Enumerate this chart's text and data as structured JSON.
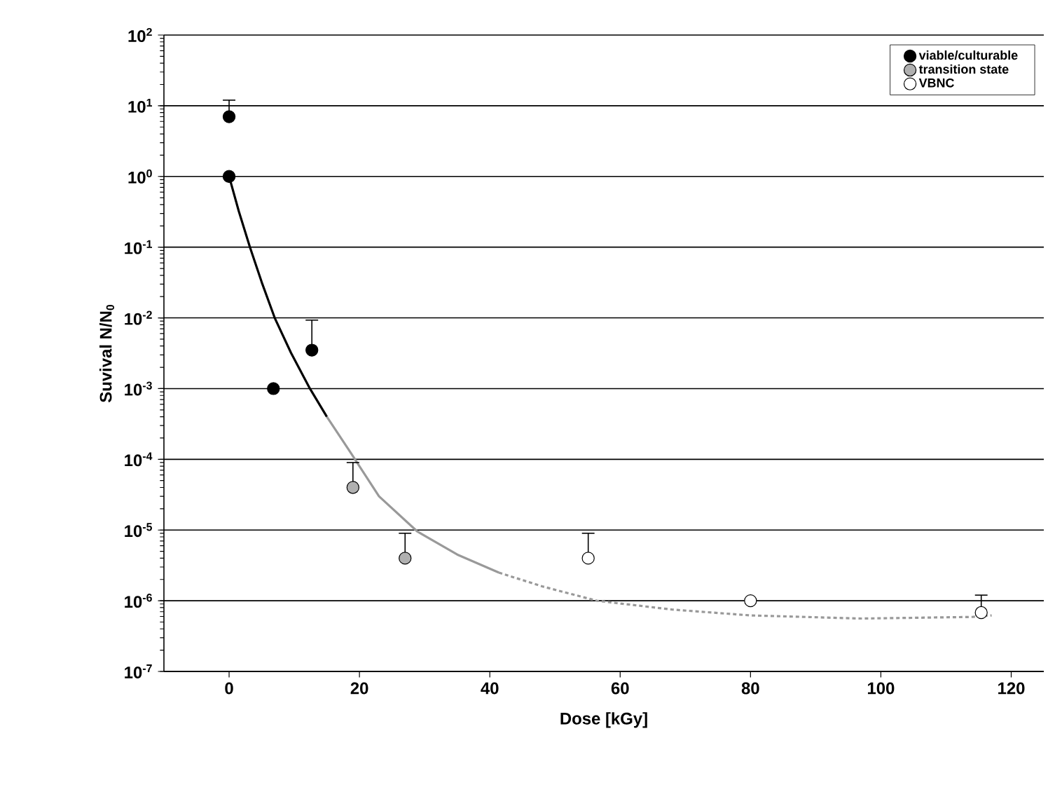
{
  "chart_data": {
    "type": "scatter",
    "xlabel": "Dose [kGy]",
    "ylabel": "Suvival N/N$_{0}$",
    "log": "y",
    "grid": "y",
    "legend": "top right",
    "xlim": [
      -10,
      125
    ],
    "xticks": [
      0,
      20,
      40,
      60,
      80,
      100,
      120
    ],
    "ylim": [
      1e-07,
      100
    ],
    "yticks": [
      {
        "value": 1e-07,
        "label": "10$^{-7}$"
      },
      {
        "value": 1e-06,
        "label": "10$^{-6}$"
      },
      {
        "value": 1e-05,
        "label": "10$^{-5}$"
      },
      {
        "value": 0.0001,
        "label": "10$^{-4}$"
      },
      {
        "value": 0.001,
        "label": "10$^{-3}$"
      },
      {
        "value": 0.01,
        "label": "10$^{-2}$"
      },
      {
        "value": 0.1,
        "label": "10$^{-1}$"
      },
      {
        "value": 1,
        "label": "10$^{0}$"
      },
      {
        "value": 10,
        "label": "10$^{1}$"
      },
      {
        "value": 100,
        "label": "10$^{2}$"
      }
    ],
    "series": [
      {
        "type": "line",
        "color": "#000000",
        "line_style": "solid",
        "marker": "none",
        "x": [
          0,
          1.5,
          3.2,
          5,
          7,
          9.5,
          12.4,
          15
        ],
        "values": [
          1,
          0.32,
          0.1,
          0.032,
          0.01,
          0.0032,
          0.001,
          0.0004
        ]
      },
      {
        "type": "line",
        "color": "#999999",
        "line_style": "solid",
        "marker": "none",
        "x": [
          15,
          18.6,
          23,
          28.9,
          35,
          41.4
        ],
        "values": [
          0.0004,
          0.000126,
          3e-05,
          9.5e-06,
          4.5e-06,
          2.5e-06
        ]
      },
      {
        "type": "line",
        "color": "#999999",
        "line_style": "dotted",
        "marker": "none",
        "x": [
          41.4,
          48,
          56.4,
          68,
          80,
          97,
          114,
          117
        ],
        "values": [
          2.5e-06,
          1.6e-06,
          1e-06,
          7.5e-07,
          6.2e-07,
          5.6e-07,
          5.9e-07,
          6.2e-07
        ]
      },
      {
        "name": "viable/culturable",
        "color": "#000000",
        "marker": "circle",
        "x": [
          0,
          0,
          6.8,
          12.7
        ],
        "values": [
          7,
          1,
          0.001,
          0.0035
        ],
        "errors": [
          [
            7,
            12
          ],
          null,
          null,
          [
            0.0035,
            0.0093
          ]
        ]
      },
      {
        "name": "transition state",
        "color": "#b0b0b0",
        "marker": "circle",
        "x": [
          19,
          27
        ],
        "values": [
          4e-05,
          4e-06
        ],
        "errors": [
          [
            4e-05,
            9e-05
          ],
          [
            4e-06,
            9e-06
          ]
        ]
      },
      {
        "name": "VBNC",
        "color": "#ffffff",
        "marker": "circle",
        "x": [
          55.1,
          80,
          115.4
        ],
        "values": [
          4e-06,
          1e-06,
          6.8e-07
        ],
        "errors": [
          [
            4e-06,
            9e-06
          ],
          null,
          [
            6.8e-07,
            1.2e-06
          ]
        ]
      }
    ]
  }
}
